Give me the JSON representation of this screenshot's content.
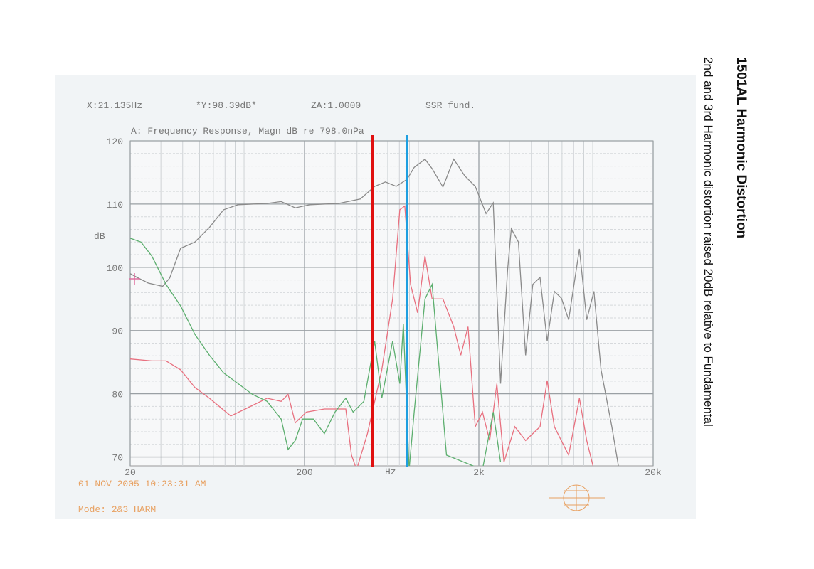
{
  "chart_data": {
    "type": "line",
    "title": "1501AL Harmonic Distortion",
    "subtitle": "2nd and 3rd Harmonic distortion raised 20dB relative to Fundamental",
    "readout": [
      "X:21.135Hz",
      "*Y:98.39dB*",
      "ZA:1.0000",
      "SSR fund."
    ],
    "plot_title": "A: Frequency Response, Magn dB re 798.0nPa",
    "y_label": "dB",
    "x_label": "Hz",
    "timestamp": "01-NOV-2005 10:23:31 AM",
    "mode": "Mode: 2&3 HARM",
    "log_x": true,
    "grid": true,
    "xlim": [
      20,
      20000
    ],
    "xticks": [
      20,
      200,
      {
        "value": 2000,
        "label": "2k"
      },
      {
        "value": 20000,
        "label": "20k"
      }
    ],
    "ylim": [
      68.6,
      120
    ],
    "yticks": [
      70,
      80,
      90,
      100,
      110,
      120
    ],
    "series": [
      {
        "color": "#8a8a8a",
        "x": [
          20,
          21.9,
          25.4,
          30.7,
          33.7,
          38.9,
          47,
          56.9,
          68.7,
          83.2,
          122,
          147,
          177,
          215,
          314,
          418,
          505,
          582,
          671,
          774,
          851,
          982,
          1079,
          1244,
          1435,
          1655,
          1907,
          2199,
          2417,
          2663,
          2925,
          3070,
          3374,
          3709,
          4076,
          4486,
          4931,
          5420,
          5957,
          6547,
          7550,
          8311,
          9141,
          10040,
          11590,
          12740
        ],
        "values": [
          99,
          98.4,
          97.5,
          97,
          98.3,
          103,
          104,
          106.3,
          109.1,
          109.9,
          110.1,
          110.4,
          109.4,
          109.9,
          110.1,
          110.8,
          112.8,
          113.5,
          112.8,
          113.9,
          115.8,
          117.1,
          115.6,
          112.7,
          117.1,
          114.5,
          112.8,
          108.5,
          110.2,
          81.6,
          99.6,
          106.1,
          104,
          86.1,
          97.3,
          98.4,
          88.3,
          96.2,
          95.1,
          91.7,
          102.9,
          91.7,
          96.2,
          83.8,
          74.8,
          68
        ]
      },
      {
        "color": "#e8707f",
        "x": [
          20,
          26.6,
          32.1,
          38.9,
          47,
          56.9,
          75.5,
          91.4,
          122,
          147,
          161,
          177,
          205,
          260,
          345,
          372,
          398,
          459,
          555,
          640,
          704,
          752,
          811,
          891,
          982,
          1079,
          1244,
          1435,
          1576,
          1734,
          1907,
          2098,
          2307,
          2536,
          2788,
          3214,
          3709,
          4486,
          4931,
          5420,
          6547,
          7550,
          8311,
          9141
        ],
        "values": [
          85.5,
          85.2,
          85.2,
          83.8,
          81,
          79.3,
          76.5,
          77.6,
          79.3,
          78.8,
          79.9,
          75.4,
          77.1,
          77.6,
          77.6,
          70.3,
          68,
          73.7,
          83.8,
          95,
          109.1,
          109.7,
          97.3,
          92.8,
          101.8,
          95,
          95,
          90.6,
          86.1,
          90.6,
          74.8,
          77.1,
          72.6,
          81.6,
          69.2,
          74.8,
          72.6,
          74.8,
          82.1,
          74.8,
          70.3,
          79.3,
          72.6,
          68
        ]
      },
      {
        "color": "#5cae6e",
        "x": [
          20,
          23.05,
          26.6,
          32.1,
          38.9,
          47,
          56.9,
          68.7,
          83.2,
          100.5,
          122,
          147,
          161,
          177,
          195,
          225,
          260,
          299,
          345,
          380,
          438,
          505,
          555,
          640,
          704,
          738,
          796,
          851,
          982,
          1079,
          1186,
          1304,
          2098,
          2417,
          2663
        ],
        "values": [
          104.6,
          104,
          101.8,
          97.3,
          93.9,
          89.4,
          86.1,
          83.3,
          81.6,
          79.9,
          78.8,
          76,
          71.2,
          72.6,
          76,
          76,
          73.7,
          77.1,
          79.3,
          77.1,
          78.8,
          88.3,
          79.3,
          88.3,
          81.6,
          91.1,
          68,
          77.1,
          95,
          97.3,
          83.8,
          70.3,
          68,
          77.1,
          69.2
        ]
      }
    ],
    "markers": [
      {
        "x": 491,
        "color": "#e01010"
      },
      {
        "x": 774,
        "color": "#1e9fe0"
      }
    ]
  }
}
